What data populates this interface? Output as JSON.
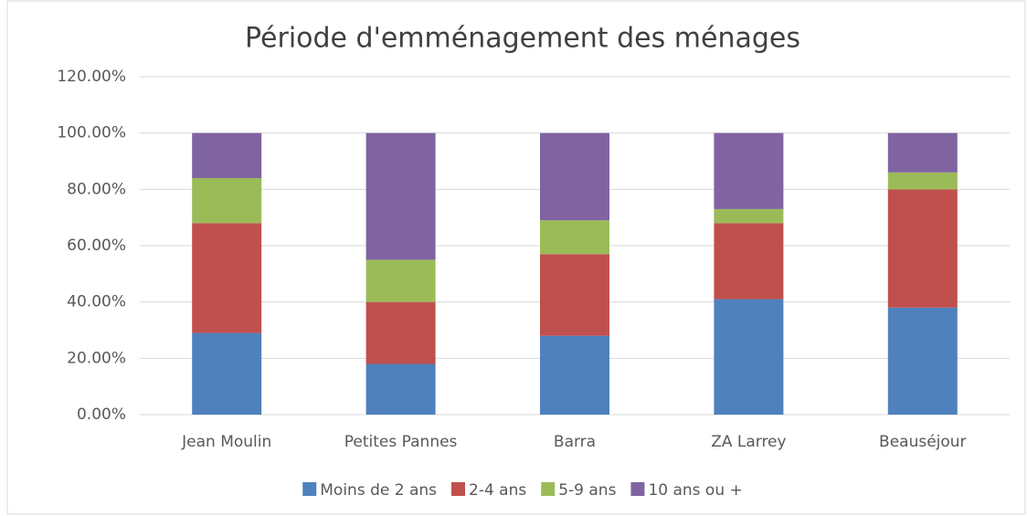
{
  "chart_data": {
    "type": "stacked_bar",
    "title": "Période d'emménagement des ménages",
    "categories": [
      "Jean Moulin",
      "Petites Pannes",
      "Barra",
      "ZA Larrey",
      "Beauséjour"
    ],
    "series": [
      {
        "name": "Moins de 2 ans",
        "color": "#4f81bd",
        "values": [
          29,
          18,
          28,
          41,
          38
        ]
      },
      {
        "name": "2-4 ans",
        "color": "#c0504d",
        "values": [
          39,
          22,
          29,
          27,
          42
        ]
      },
      {
        "name": "5-9 ans",
        "color": "#9bbb59",
        "values": [
          16,
          15,
          12,
          5,
          6
        ]
      },
      {
        "name": "10 ans ou +",
        "color": "#8064a2",
        "values": [
          16,
          45,
          31,
          27,
          14
        ]
      }
    ],
    "ylim": [
      0,
      120
    ],
    "yticks": [
      {
        "value": 0,
        "label": "0.00%"
      },
      {
        "value": 20,
        "label": "20.00%"
      },
      {
        "value": 40,
        "label": "40.00%"
      },
      {
        "value": 60,
        "label": "60.00%"
      },
      {
        "value": 80,
        "label": "80.00%"
      },
      {
        "value": 100,
        "label": "100.00%"
      },
      {
        "value": 120,
        "label": "120.00%"
      }
    ],
    "grid": true,
    "legend": "bottom"
  }
}
